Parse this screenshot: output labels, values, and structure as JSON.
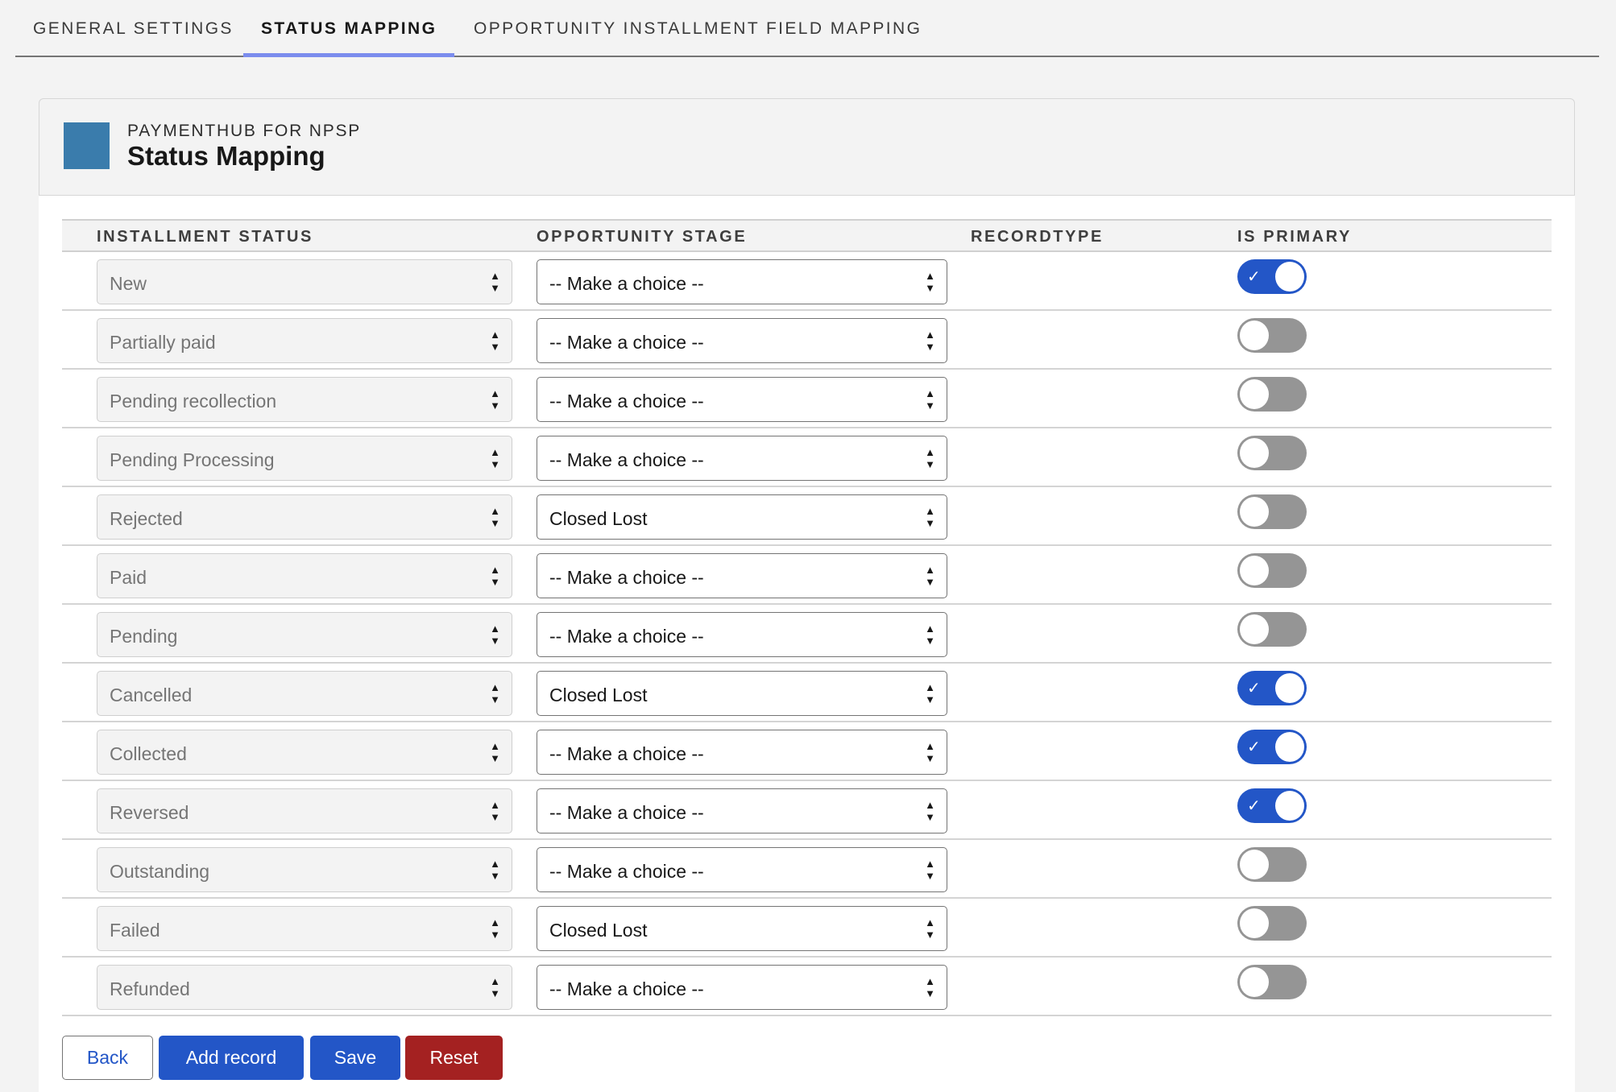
{
  "tabs": [
    {
      "label": "GENERAL SETTINGS"
    },
    {
      "label": "STATUS MAPPING",
      "active": true
    },
    {
      "label": "OPPORTUNITY INSTALLMENT FIELD MAPPING"
    }
  ],
  "header": {
    "eyebrow": "PAYMENTHUB FOR NPSP",
    "title": "Status Mapping",
    "icon_color": "#3a7cac"
  },
  "table": {
    "columns": [
      "INSTALLMENT STATUS",
      "OPPORTUNITY STAGE",
      "RECORDTYPE",
      "IS PRIMARY"
    ],
    "rows": [
      {
        "status": "New",
        "stage": "-- Make a choice --",
        "primary": true
      },
      {
        "status": "Partially paid",
        "stage": "-- Make a choice --",
        "primary": false
      },
      {
        "status": "Pending recollection",
        "stage": "-- Make a choice --",
        "primary": false
      },
      {
        "status": "Pending Processing",
        "stage": "-- Make a choice --",
        "primary": false
      },
      {
        "status": "Rejected",
        "stage": "Closed Lost",
        "primary": false
      },
      {
        "status": "Paid",
        "stage": "-- Make a choice --",
        "primary": false
      },
      {
        "status": "Pending",
        "stage": "-- Make a choice --",
        "primary": false
      },
      {
        "status": "Cancelled",
        "stage": "Closed Lost",
        "primary": true
      },
      {
        "status": "Collected",
        "stage": "-- Make a choice --",
        "primary": true
      },
      {
        "status": "Reversed",
        "stage": "-- Make a choice --",
        "primary": true
      },
      {
        "status": "Outstanding",
        "stage": "-- Make a choice --",
        "primary": false
      },
      {
        "status": "Failed",
        "stage": "Closed Lost",
        "primary": false
      },
      {
        "status": "Refunded",
        "stage": "-- Make a choice --",
        "primary": false
      }
    ]
  },
  "buttons": {
    "back": "Back",
    "add": "Add record",
    "save": "Save",
    "reset": "Reset"
  },
  "colors": {
    "brand": "#2356c7",
    "danger": "#a42121",
    "toggle_off": "#959595",
    "tab_indicator": "#7b8ced"
  }
}
